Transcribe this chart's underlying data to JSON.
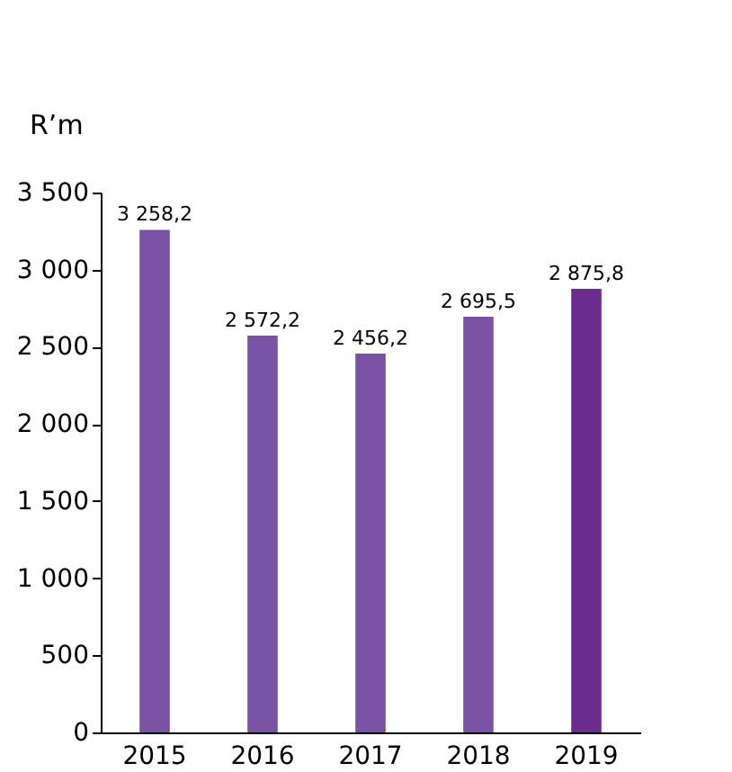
{
  "chart_data": {
    "type": "bar",
    "ylabel": "R’m",
    "categories": [
      "2015",
      "2016",
      "2017",
      "2018",
      "2019"
    ],
    "values": [
      3258.2,
      2572.2,
      2456.2,
      2695.5,
      2875.8
    ],
    "value_labels": [
      "3 258,2",
      "2 572,2",
      "2 456,2",
      "2 695,5",
      "2 875,8"
    ],
    "colors": [
      "#7a52a3",
      "#7a52a3",
      "#7a52a3",
      "#7a52a3",
      "#6a2c8e"
    ],
    "ylim": [
      0,
      3500
    ],
    "yticks": [
      0,
      {
        "value": 500,
        "label": "500"
      },
      {
        "value": 1000,
        "label": "1 000"
      },
      {
        "value": 1500,
        "label": "1 500"
      },
      {
        "value": 2000,
        "label": "2 000"
      },
      {
        "value": 2500,
        "label": "2 500"
      },
      {
        "value": 3000,
        "label": "3 000"
      },
      {
        "value": 3500,
        "label": "3 500"
      }
    ],
    "grid": false
  }
}
